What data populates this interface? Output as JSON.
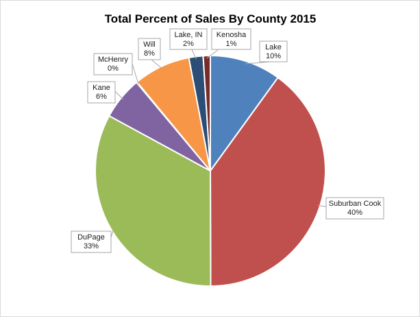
{
  "chart_data": {
    "type": "pie",
    "title": "Total Percent of Sales By County 2015",
    "slices": [
      {
        "label": "Lake",
        "value": 10,
        "display": "10%",
        "color": "#4F81BD"
      },
      {
        "label": "Suburban Cook",
        "value": 40,
        "display": "40%",
        "color": "#C0504D"
      },
      {
        "label": "DuPage",
        "value": 33,
        "display": "33%",
        "color": "#9BBB59"
      },
      {
        "label": "Kane",
        "value": 6,
        "display": "6%",
        "color": "#8064A2"
      },
      {
        "label": "McHenry",
        "value": 0.1,
        "display": "0%",
        "color": "#4BACC6"
      },
      {
        "label": "Will",
        "value": 8,
        "display": "8%",
        "color": "#F79646"
      },
      {
        "label": "Lake, IN",
        "value": 2,
        "display": "2%",
        "color": "#2C4D75"
      },
      {
        "label": "Kenosha",
        "value": 1,
        "display": "1%",
        "color": "#772C2A"
      }
    ],
    "start_angle_deg": 0,
    "direction": "clockwise",
    "data_labels": "callouts"
  }
}
